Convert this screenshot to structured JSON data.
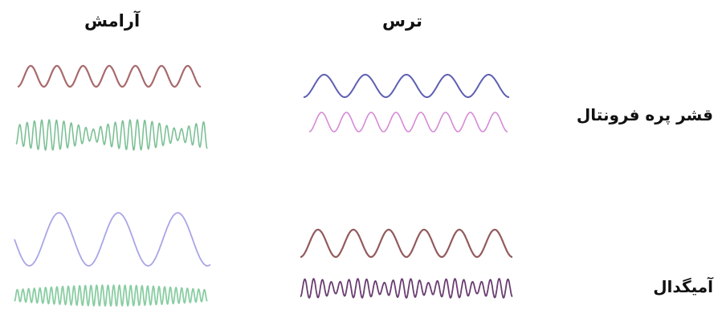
{
  "labels": {
    "calm": "آرامش",
    "fear": "ترس",
    "prefrontal_cortex": "قشر پره فرونتال",
    "amygdala": "آمیگدال"
  },
  "waves": [
    {
      "panel": "calm-prefrontal-top",
      "color": "#a86a6c"
    },
    {
      "panel": "calm-prefrontal-bottom",
      "color": "#7cc095"
    },
    {
      "panel": "fear-prefrontal-top",
      "color": "#5e5fb2"
    },
    {
      "panel": "fear-prefrontal-bottom",
      "color": "#d58ad6"
    },
    {
      "panel": "calm-amygdala-top",
      "color": "#a9a5e6"
    },
    {
      "panel": "calm-amygdala-bottom",
      "color": "#89cda2"
    },
    {
      "panel": "fear-amygdala-top",
      "color": "#935a5c"
    },
    {
      "panel": "fear-amygdala-bottom",
      "color": "#6a3d72"
    }
  ]
}
